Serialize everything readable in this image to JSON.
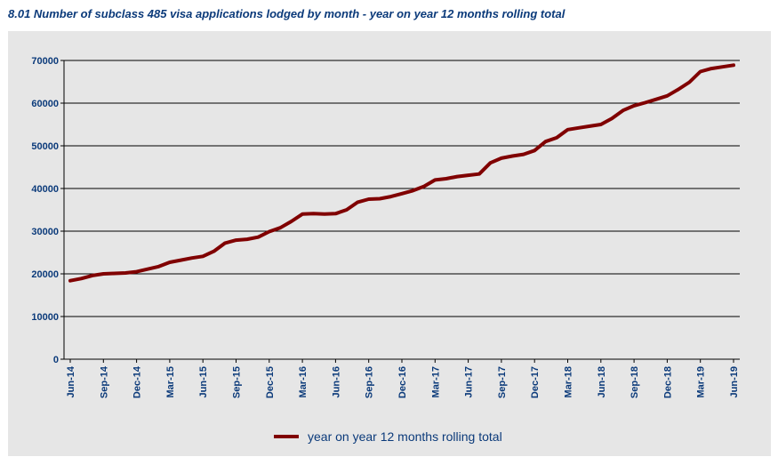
{
  "title": "8.01 Number of subclass 485 visa applications lodged by month - year on year 12 months rolling total",
  "chart_data": {
    "type": "line",
    "title": "8.01 Number of subclass 485 visa applications lodged by month - year on year 12 months rolling total",
    "x": [
      "Jun-14",
      "Jul-14",
      "Aug-14",
      "Sep-14",
      "Oct-14",
      "Nov-14",
      "Dec-14",
      "Jan-15",
      "Feb-15",
      "Mar-15",
      "Apr-15",
      "May-15",
      "Jun-15",
      "Jul-15",
      "Aug-15",
      "Sep-15",
      "Oct-15",
      "Nov-15",
      "Dec-15",
      "Jan-16",
      "Feb-16",
      "Mar-16",
      "Apr-16",
      "May-16",
      "Jun-16",
      "Jul-16",
      "Aug-16",
      "Sep-16",
      "Oct-16",
      "Nov-16",
      "Dec-16",
      "Jan-17",
      "Feb-17",
      "Mar-17",
      "Apr-17",
      "May-17",
      "Jun-17",
      "Jul-17",
      "Aug-17",
      "Sep-17",
      "Oct-17",
      "Nov-17",
      "Dec-17",
      "Jan-18",
      "Feb-18",
      "Mar-18",
      "Apr-18",
      "May-18",
      "Jun-18",
      "Jul-18",
      "Aug-18",
      "Sep-18",
      "Oct-18",
      "Nov-18",
      "Dec-18",
      "Jan-19",
      "Feb-19",
      "Mar-19",
      "Apr-19",
      "May-19",
      "Jun-19"
    ],
    "x_tick_labels": [
      "Jun-14",
      "Sep-14",
      "Dec-14",
      "Mar-15",
      "Jun-15",
      "Sep-15",
      "Dec-15",
      "Mar-16",
      "Jun-16",
      "Sep-16",
      "Dec-16",
      "Mar-17",
      "Jun-17",
      "Sep-17",
      "Dec-17",
      "Mar-18",
      "Jun-18",
      "Sep-18",
      "Dec-18",
      "Mar-19",
      "Jun-19"
    ],
    "y_ticks": [
      "0",
      "10000",
      "20000",
      "30000",
      "40000",
      "50000",
      "60000",
      "70000"
    ],
    "ylim": [
      0,
      70000
    ],
    "grid": "horizontal",
    "legend_position": "bottom",
    "series": [
      {
        "name": "year on year 12 months rolling total",
        "color": "#800000",
        "values": [
          18400,
          18900,
          19600,
          20000,
          20100,
          20200,
          20500,
          21100,
          21700,
          22700,
          23200,
          23700,
          24100,
          25300,
          27200,
          27900,
          28100,
          28600,
          29900,
          30800,
          32300,
          34000,
          34100,
          34000,
          34100,
          35000,
          36800,
          37500,
          37600,
          38100,
          38800,
          39500,
          40500,
          42000,
          42300,
          42800,
          43100,
          43400,
          46000,
          47100,
          47600,
          48000,
          48900,
          51000,
          51900,
          53800,
          54200,
          54600,
          55000,
          56400,
          58300,
          59400,
          60100,
          60900,
          61700,
          63200,
          64900,
          67400,
          68100,
          68500,
          68900
        ]
      }
    ]
  }
}
